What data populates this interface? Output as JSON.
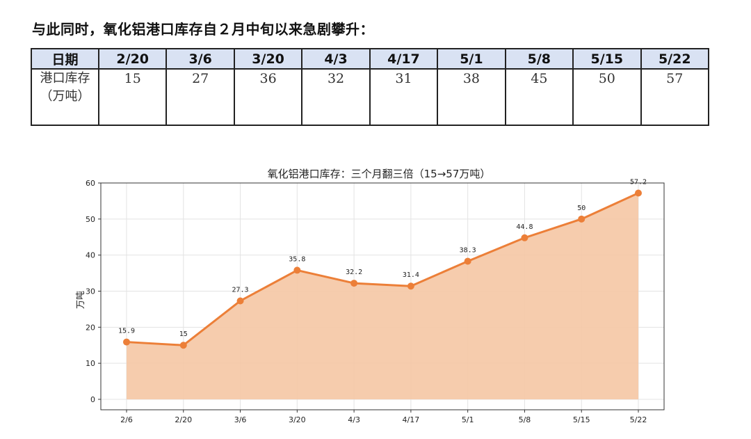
{
  "intro": "与此同时，氧化铝港口库存自２月中旬以来急剧攀升：",
  "table": {
    "header_label": "日期",
    "row_label": "港口库存（万吨）",
    "dates": [
      "2/20",
      "3/6",
      "3/20",
      "4/3",
      "4/17",
      "5/1",
      "5/8",
      "5/15",
      "5/22"
    ],
    "values": [
      "15",
      "27",
      "36",
      "32",
      "31",
      "38",
      "45",
      "50",
      "57"
    ]
  },
  "chart_data": {
    "type": "area",
    "title": "氧化铝港口库存：三个月翻三倍（15→57万吨）",
    "xlabel": "",
    "ylabel": "万吨",
    "categories": [
      "2/6",
      "2/20",
      "3/6",
      "3/20",
      "4/3",
      "4/17",
      "5/1",
      "5/8",
      "5/15",
      "5/22"
    ],
    "values": [
      15.9,
      15,
      27.3,
      35.8,
      32.2,
      31.4,
      38.3,
      44.8,
      50,
      57.2
    ],
    "labels": [
      "15.9",
      "15",
      "27.3",
      "35.8",
      "32.2",
      "31.4",
      "38.3",
      "44.8",
      "50",
      "57.2"
    ],
    "ylim": [
      -2.9,
      60
    ],
    "yticks": [
      0,
      10,
      20,
      30,
      40,
      50,
      60
    ],
    "grid": true,
    "line_color": "#ec7f38",
    "fill_color": "#f5c7a4"
  }
}
